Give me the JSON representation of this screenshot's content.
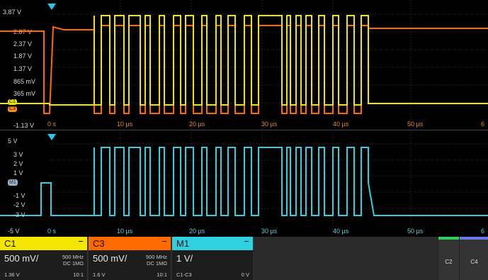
{
  "top_pane": {
    "y_labels": [
      "3.87 V",
      "2.87 V",
      "2.37 V",
      "1.87 V",
      "1.37 V",
      "865 mV",
      "365 mV",
      "-1.13 V"
    ],
    "x_labels": [
      "0 s",
      "10 µs",
      "20 µs",
      "30 µs",
      "40 µs",
      "50 µs",
      "6"
    ],
    "channel_markers": [
      "C1",
      "C3"
    ]
  },
  "bottom_pane": {
    "y_labels": [
      "5 V",
      "3 V",
      "2 V",
      "1 V",
      "-1 V",
      "-2 V",
      "-3 V",
      "-5 V"
    ],
    "x_labels": [
      "0 s",
      "10 µs",
      "20 µs",
      "30 µs",
      "40 µs",
      "50 µs",
      "6"
    ],
    "math_marker": "M1"
  },
  "colors": {
    "c1": "#f2e600",
    "c3": "#ff6a00",
    "m1": "#2fd0e0",
    "trigger": "#25c6e8"
  },
  "icons": {
    "trigger": "trigger-position-icon"
  },
  "channels": [
    {
      "name": "C1",
      "vdiv": "500 mV/",
      "bw": "500 MHz",
      "coupling": "DC 1MΩ",
      "offset": "1.36 V",
      "probe": "10:1"
    },
    {
      "name": "C3",
      "vdiv": "500 mV/",
      "bw": "500 MHz",
      "coupling": "DC 1MΩ",
      "offset": "1.6 V",
      "probe": "10:1"
    },
    {
      "name": "M1",
      "vdiv": "1 V/",
      "source": "C1-C3",
      "offset": "0 V"
    }
  ],
  "side_buttons": [
    "C2",
    "C4"
  ]
}
